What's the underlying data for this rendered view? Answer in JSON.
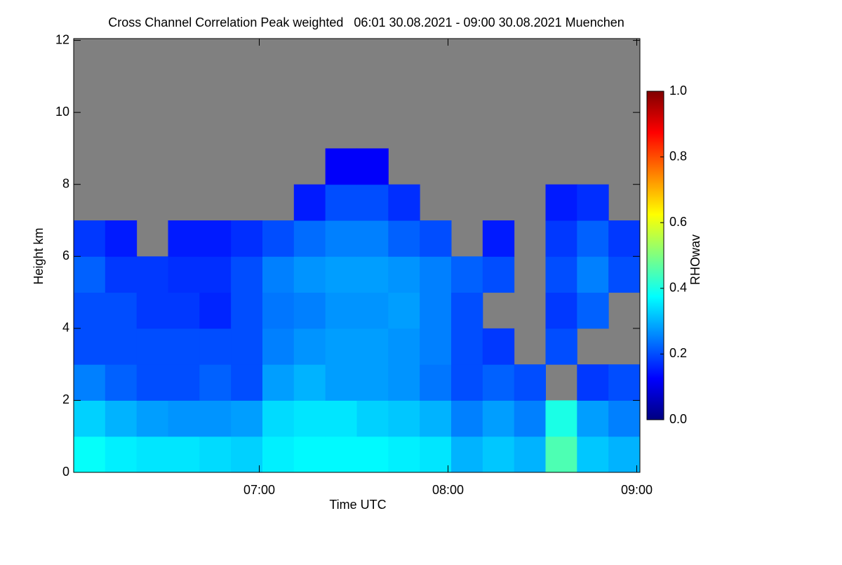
{
  "chart_data": {
    "type": "heatmap",
    "title": "Cross Channel Correlation Peak weighted   06:01 30.08.2021 - 09:00 30.08.2021 Muenchen",
    "x_label": "Time UTC",
    "y_label": "Height km",
    "colorbar_label": "RHOwav",
    "x_edges": [
      6.0167,
      6.1833,
      6.35,
      6.5167,
      6.6833,
      6.85,
      7.0167,
      7.1833,
      7.35,
      7.5167,
      7.6833,
      7.85,
      8.0167,
      8.1833,
      8.35,
      8.5167,
      8.6833,
      8.85,
      9.0167
    ],
    "y_edges": [
      0,
      1,
      2,
      3,
      4,
      5,
      6,
      7,
      8,
      9,
      10,
      11,
      12
    ],
    "values": [
      [
        0.38,
        0.36,
        0.35,
        0.35,
        0.34,
        0.33,
        0.36,
        0.37,
        0.37,
        0.37,
        0.36,
        0.35,
        0.3,
        0.32,
        0.3,
        0.45,
        0.32,
        0.3
      ],
      [
        0.33,
        0.3,
        0.28,
        0.27,
        0.27,
        0.28,
        0.34,
        0.35,
        0.35,
        0.33,
        0.32,
        0.3,
        0.25,
        0.28,
        0.25,
        0.4,
        0.28,
        0.25
      ],
      [
        0.25,
        0.22,
        0.2,
        0.2,
        0.22,
        0.2,
        0.28,
        0.3,
        0.28,
        0.28,
        0.27,
        0.24,
        0.2,
        0.22,
        0.2,
        null,
        0.18,
        0.2
      ],
      [
        0.2,
        0.2,
        0.2,
        0.2,
        0.2,
        0.2,
        0.25,
        0.27,
        0.28,
        0.28,
        0.27,
        0.25,
        0.2,
        0.18,
        null,
        0.2,
        null,
        null
      ],
      [
        0.2,
        0.2,
        0.18,
        0.18,
        0.16,
        0.2,
        0.24,
        0.25,
        0.27,
        0.27,
        0.28,
        0.25,
        0.2,
        null,
        null,
        0.18,
        0.22,
        null
      ],
      [
        0.22,
        0.18,
        0.18,
        0.17,
        0.17,
        0.2,
        0.25,
        0.27,
        0.28,
        0.28,
        0.27,
        0.25,
        0.22,
        0.2,
        null,
        0.2,
        0.25,
        0.2
      ],
      [
        0.18,
        0.15,
        null,
        0.15,
        0.15,
        0.17,
        0.2,
        0.23,
        0.25,
        0.25,
        0.22,
        0.2,
        null,
        0.15,
        null,
        0.18,
        0.22,
        0.18
      ],
      [
        null,
        null,
        null,
        null,
        null,
        null,
        null,
        0.15,
        0.2,
        0.2,
        0.17,
        null,
        null,
        null,
        null,
        0.15,
        0.17,
        null
      ],
      [
        null,
        null,
        null,
        null,
        null,
        null,
        null,
        null,
        0.12,
        0.12,
        null,
        null,
        null,
        null,
        null,
        null,
        null,
        null
      ],
      [
        null,
        null,
        null,
        null,
        null,
        null,
        null,
        null,
        null,
        null,
        null,
        null,
        null,
        null,
        null,
        null,
        null,
        null
      ],
      [
        null,
        null,
        null,
        null,
        null,
        null,
        null,
        null,
        null,
        null,
        null,
        null,
        null,
        null,
        null,
        null,
        null,
        null
      ],
      [
        null,
        null,
        null,
        null,
        null,
        null,
        null,
        null,
        null,
        null,
        null,
        null,
        null,
        null,
        null,
        null,
        null,
        null
      ]
    ],
    "xlim": [
      6.0167,
      9.0167
    ],
    "xticks": [
      {
        "value": 7,
        "label": "07:00"
      },
      {
        "value": 8,
        "label": "08:00"
      },
      {
        "value": 9,
        "label": "09:00"
      }
    ],
    "ylim": [
      0,
      12.05
    ],
    "yticks": [
      0,
      2,
      4,
      6,
      8,
      10,
      12
    ],
    "clim": [
      0,
      1
    ],
    "cticks": [
      {
        "value": 0,
        "label": "0.0"
      },
      0.2,
      0.4,
      0.6,
      0.8,
      {
        "value": 1,
        "label": "1.0"
      }
    ],
    "colormap": [
      "#000080",
      "#0000ff",
      "#0080ff",
      "#00ffff",
      "#80ff80",
      "#ffff00",
      "#ff8000",
      "#ff0000",
      "#800000"
    ],
    "missing_color": "#808080"
  }
}
